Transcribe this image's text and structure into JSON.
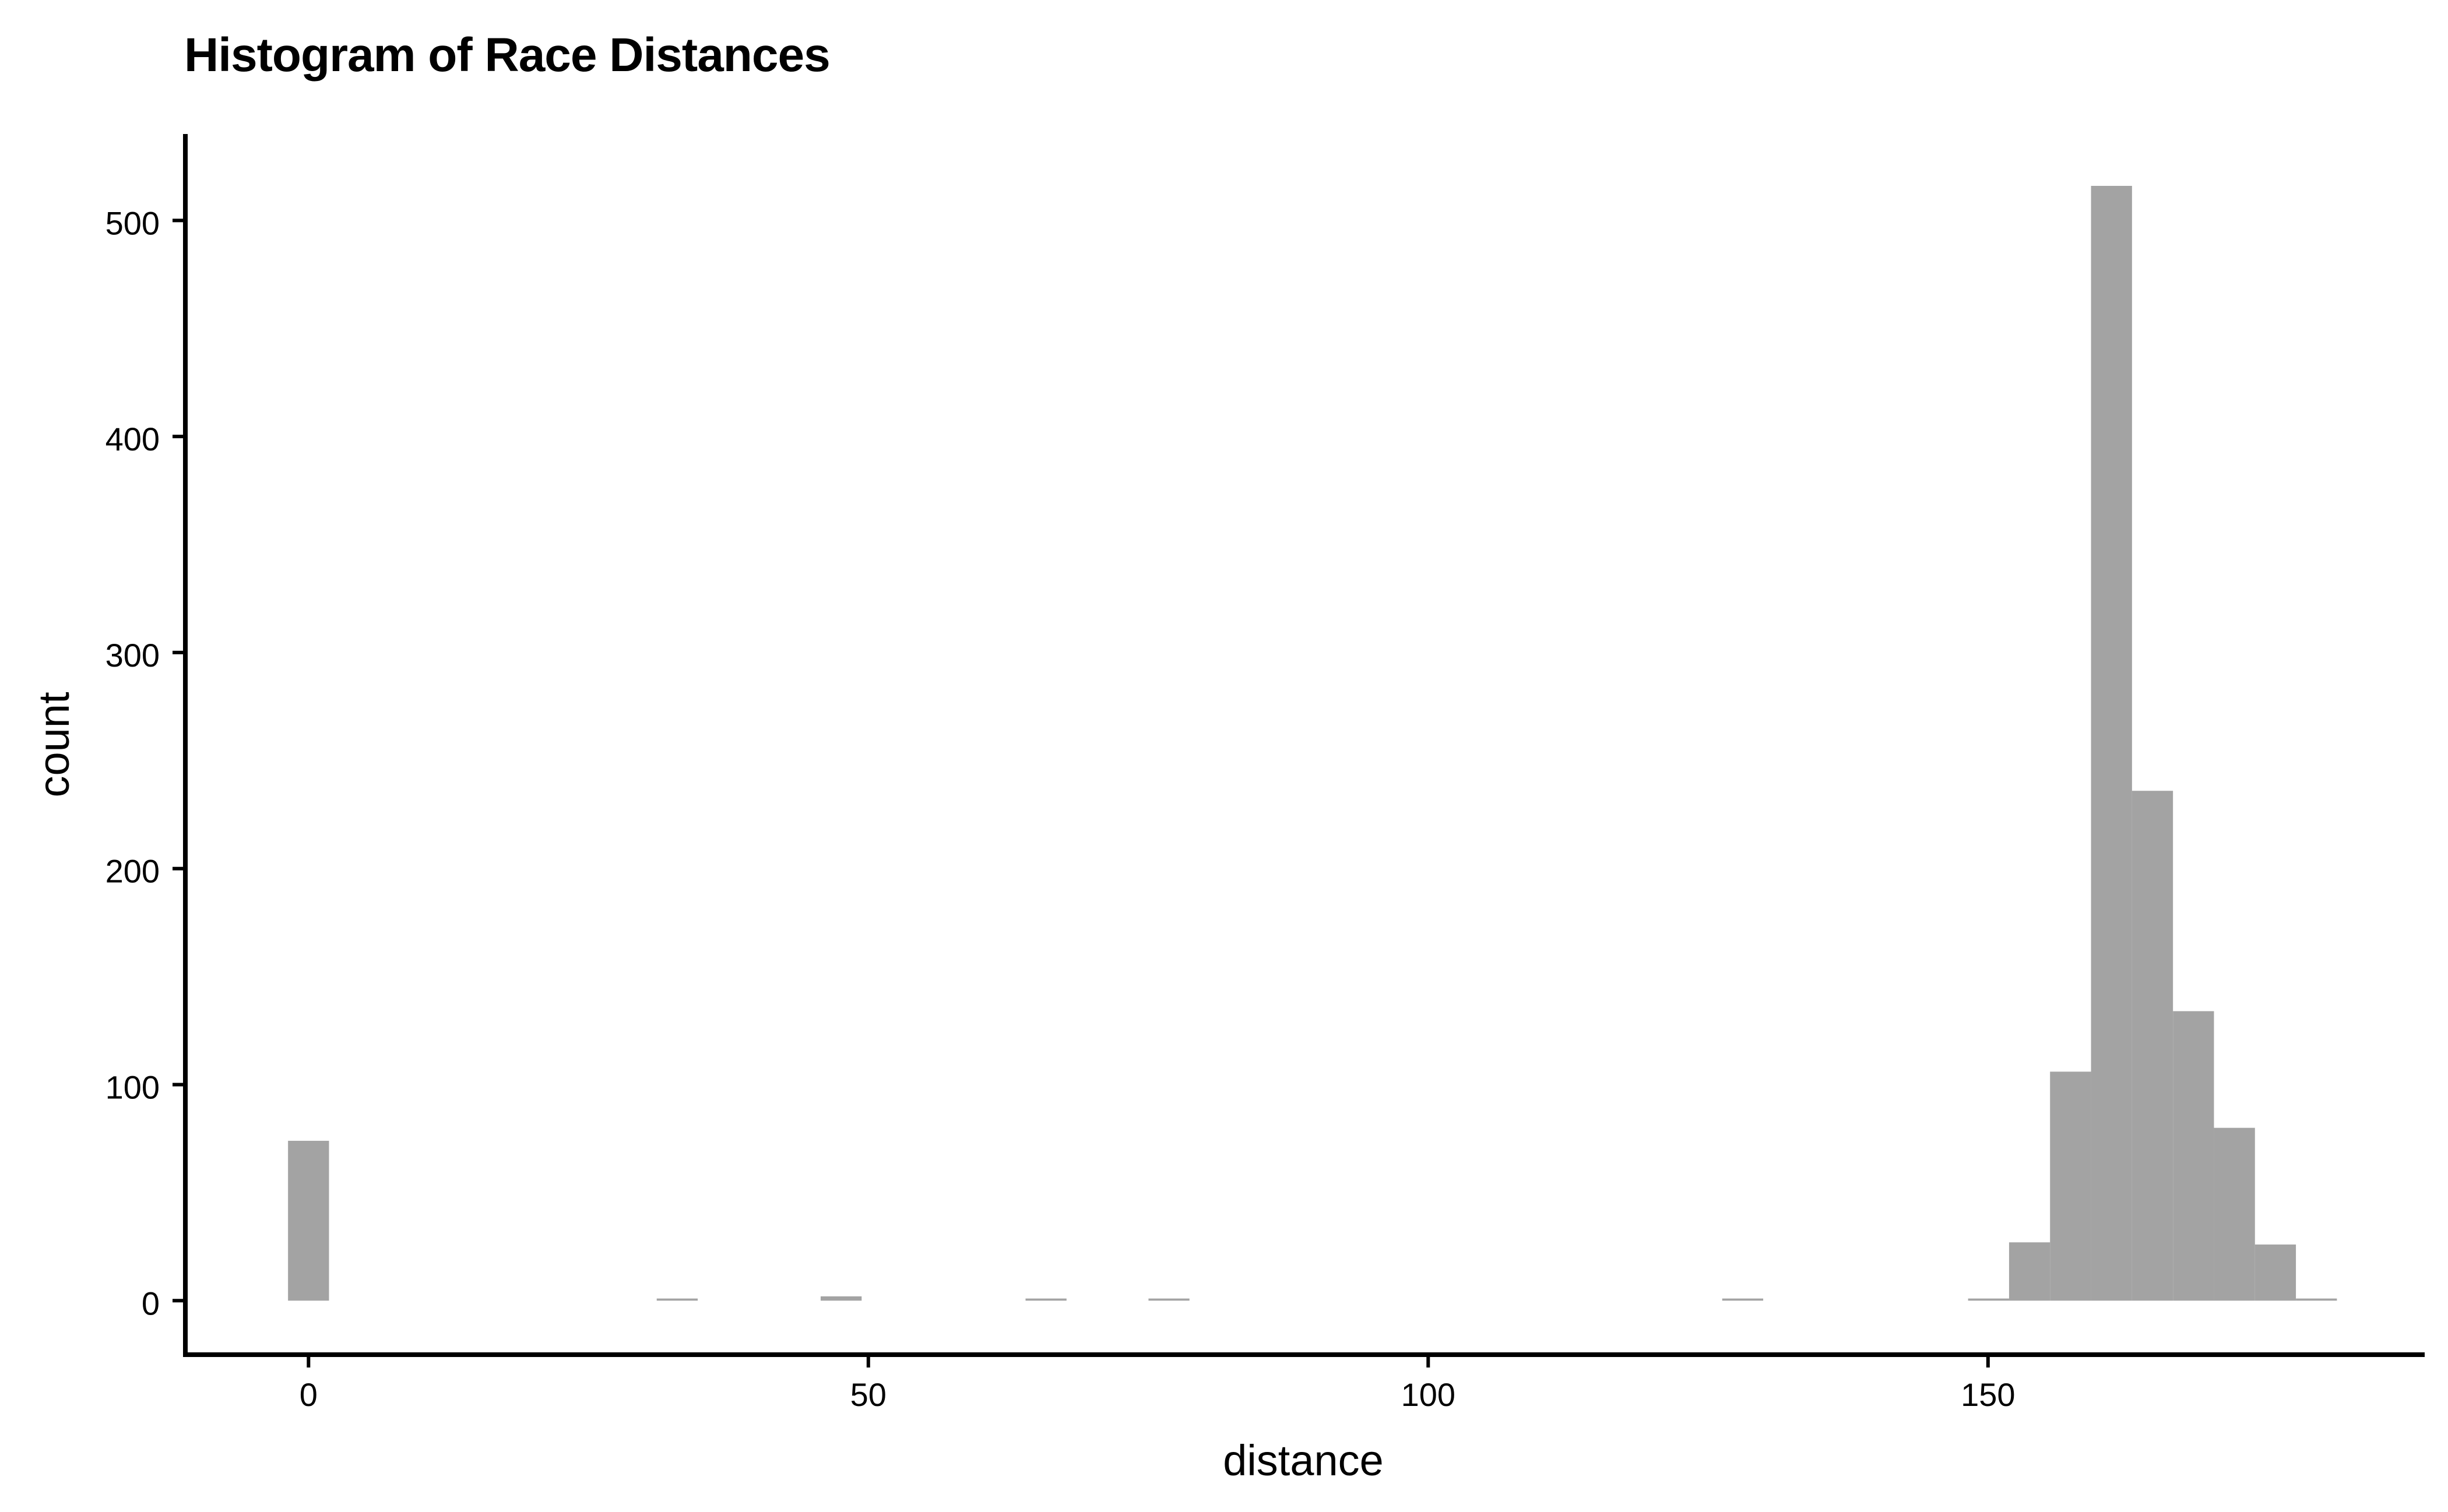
{
  "chart_data": {
    "type": "bar",
    "title": "Histogram of Race Distances",
    "xlabel": "distance",
    "ylabel": "count",
    "xlim": [
      -11,
      189
    ],
    "ylim": [
      -25,
      540
    ],
    "x_ticks": [
      {
        "value": 0,
        "label": "0"
      },
      {
        "value": 50,
        "label": "50"
      },
      {
        "value": 100,
        "label": "100"
      },
      {
        "value": 150,
        "label": "150"
      }
    ],
    "y_ticks": [
      {
        "value": 0,
        "label": "0"
      },
      {
        "value": 100,
        "label": "100"
      },
      {
        "value": 200,
        "label": "200"
      },
      {
        "value": 300,
        "label": "300"
      },
      {
        "value": 400,
        "label": "400"
      },
      {
        "value": 500,
        "label": "500"
      }
    ],
    "bin_width": 3.66,
    "bins": [
      {
        "start": -1.83,
        "end": 1.83,
        "count": 74
      },
      {
        "start": 31.1,
        "end": 34.76,
        "count": 1
      },
      {
        "start": 45.74,
        "end": 49.4,
        "count": 2
      },
      {
        "start": 64.04,
        "end": 67.7,
        "count": 1
      },
      {
        "start": 75.02,
        "end": 78.68,
        "count": 1
      },
      {
        "start": 126.26,
        "end": 129.92,
        "count": 1
      },
      {
        "start": 148.22,
        "end": 151.88,
        "count": 1
      },
      {
        "start": 151.88,
        "end": 155.54,
        "count": 27
      },
      {
        "start": 155.54,
        "end": 159.2,
        "count": 106
      },
      {
        "start": 159.2,
        "end": 162.86,
        "count": 516
      },
      {
        "start": 162.86,
        "end": 166.52,
        "count": 236
      },
      {
        "start": 166.52,
        "end": 170.18,
        "count": 134
      },
      {
        "start": 170.18,
        "end": 173.84,
        "count": 80
      },
      {
        "start": 173.84,
        "end": 177.5,
        "count": 26
      },
      {
        "start": 177.5,
        "end": 181.16,
        "count": 1
      }
    ],
    "bar_color": "#a3a3a3",
    "axis_color": "#000000",
    "grid": false,
    "legend": "none"
  }
}
